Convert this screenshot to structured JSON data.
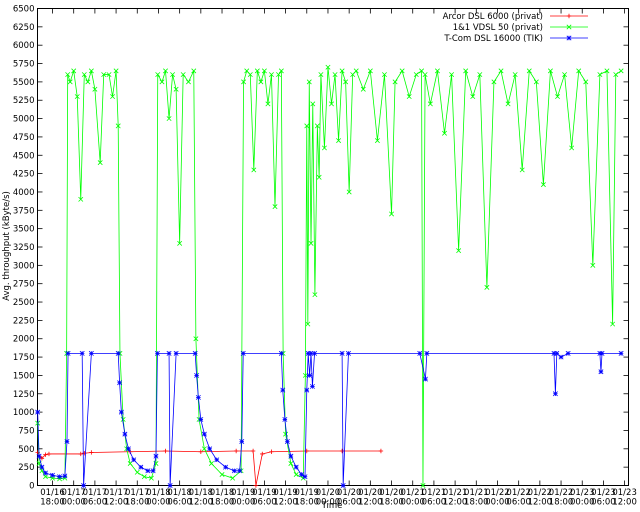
{
  "chart_data": {
    "type": "line",
    "ylabel": "Avg. throughput (kByte/s)",
    "xlabel": "Time",
    "legend": "top-right",
    "xlim": [
      13.75,
      181.1
    ],
    "ylim": [
      0,
      6500
    ],
    "yticks": [
      0,
      250,
      500,
      750,
      1000,
      1250,
      1500,
      1750,
      2000,
      2250,
      2500,
      2750,
      3000,
      3250,
      3500,
      3750,
      4000,
      4250,
      4500,
      4750,
      5000,
      5250,
      5500,
      5750,
      6000,
      6250,
      6500
    ],
    "xticks": [
      {
        "value": 18,
        "label": "01/16 18:00"
      },
      {
        "value": 24,
        "label": "01/17 00:00"
      },
      {
        "value": 30,
        "label": "01/17 06:00"
      },
      {
        "value": 36,
        "label": "01/17 12:00"
      },
      {
        "value": 42,
        "label": "01/17 18:00"
      },
      {
        "value": 48,
        "label": "01/18 00:00"
      },
      {
        "value": 54,
        "label": "01/18 06:00"
      },
      {
        "value": 60,
        "label": "01/18 12:00"
      },
      {
        "value": 66,
        "label": "01/18 18:00"
      },
      {
        "value": 72,
        "label": "01/19 00:00"
      },
      {
        "value": 78,
        "label": "01/19 06:00"
      },
      {
        "value": 84,
        "label": "01/19 12:00"
      },
      {
        "value": 90,
        "label": "01/19 18:00"
      },
      {
        "value": 96,
        "label": "01/20 00:00"
      },
      {
        "value": 102,
        "label": "01/20 06:00"
      },
      {
        "value": 108,
        "label": "01/20 12:00"
      },
      {
        "value": 114,
        "label": "01/20 18:00"
      },
      {
        "value": 120,
        "label": "01/21 00:00"
      },
      {
        "value": 126,
        "label": "01/21 06:00"
      },
      {
        "value": 132,
        "label": "01/21 12:00"
      },
      {
        "value": 138,
        "label": "01/21 18:00"
      },
      {
        "value": 144,
        "label": "01/22 00:00"
      },
      {
        "value": 150,
        "label": "01/22 06:00"
      },
      {
        "value": 156,
        "label": "01/22 12:00"
      },
      {
        "value": 162,
        "label": "01/22 18:00"
      },
      {
        "value": 168,
        "label": "01/23 00:00"
      },
      {
        "value": 174,
        "label": "01/23 06:00"
      },
      {
        "value": 180,
        "label": "01/23 12:00"
      }
    ],
    "series": [
      {
        "name": "Arcor DSL 6000 (privat)",
        "color": "#ff0000",
        "marker": "plus",
        "x": [
          13.8,
          15,
          16,
          17,
          26,
          27,
          29,
          40,
          50,
          60,
          70,
          74.8,
          75.6,
          77.4,
          80,
          90,
          100,
          111
        ],
        "values": [
          450,
          370,
          420,
          430,
          430,
          440,
          450,
          460,
          470,
          460,
          470,
          470,
          0,
          430,
          460,
          470,
          470,
          470
        ]
      },
      {
        "name": "1&1 VDSL 50 (privat)",
        "color": "#00ff00",
        "marker": "cross",
        "x": [
          13.8,
          14.2,
          15,
          16,
          18,
          20,
          21.5,
          22.0,
          22.3,
          23,
          24,
          25,
          26,
          27,
          28,
          29,
          30,
          31.5,
          32.5,
          34,
          35,
          36,
          36.6,
          37.1,
          38,
          39,
          40,
          42,
          44,
          46,
          47.3,
          47.8,
          49,
          50,
          51,
          52,
          53,
          54,
          55,
          56.5,
          58,
          58.6,
          59.5,
          61,
          63,
          66,
          69,
          71.4,
          72.1,
          73,
          74,
          75,
          76,
          77,
          78,
          79,
          80,
          81,
          82,
          82.8,
          83.3,
          84,
          85.5,
          87,
          89,
          89.6,
          90,
          90.3,
          90.7,
          91.2,
          91.7,
          92.3,
          93,
          93.5,
          94,
          95,
          96,
          97,
          98,
          99,
          100,
          101,
          102,
          103,
          104,
          106,
          108,
          110,
          112,
          114,
          115,
          117,
          119,
          121,
          122.5,
          122.9,
          123.5,
          125,
          127,
          129,
          131,
          133,
          135,
          137,
          139,
          141,
          143,
          145,
          147,
          149,
          151,
          153,
          155,
          157,
          159,
          161,
          163,
          165,
          167,
          169,
          171,
          173,
          175,
          176.6,
          177.5,
          179
        ],
        "values": [
          850,
          300,
          200,
          120,
          100,
          90,
          100,
          1800,
          5600,
          5500,
          5650,
          5300,
          3900,
          5600,
          5500,
          5650,
          5400,
          4400,
          5600,
          5600,
          5300,
          5650,
          4900,
          1800,
          900,
          500,
          300,
          180,
          120,
          100,
          300,
          5600,
          5500,
          5650,
          5000,
          5600,
          5400,
          3300,
          5600,
          5500,
          5650,
          2000,
          900,
          500,
          300,
          150,
          100,
          200,
          5500,
          5650,
          5600,
          4300,
          5650,
          5500,
          5650,
          5200,
          5600,
          3800,
          5600,
          5650,
          1800,
          700,
          300,
          150,
          100,
          1500,
          4900,
          2200,
          5500,
          3300,
          5200,
          2600,
          4900,
          4200,
          5600,
          4600,
          5700,
          5200,
          5600,
          4700,
          5650,
          5500,
          4000,
          5600,
          5650,
          5400,
          5650,
          4700,
          5600,
          3700,
          5500,
          5650,
          5300,
          5600,
          5650,
          0,
          5600,
          5200,
          5650,
          4800,
          5600,
          3200,
          5650,
          5300,
          5600,
          2700,
          5500,
          5650,
          5200,
          5600,
          4300,
          5650,
          5500,
          4100,
          5650,
          5300,
          5600,
          4600,
          5650,
          5500,
          3000,
          5600,
          5650,
          2200,
          5600,
          5650
        ]
      },
      {
        "name": "T-Com DSL 16000 (TIK)",
        "color": "#0000ff",
        "marker": "star",
        "x": [
          13.8,
          14.2,
          15,
          16,
          18,
          20,
          21.5,
          22.1,
          22.4,
          26.4,
          26.8,
          29,
          36.6,
          37,
          37.5,
          38.5,
          39.5,
          41,
          43,
          45,
          46.5,
          47.3,
          47.7,
          51,
          51.3,
          53,
          58.4,
          58.8,
          59.3,
          60,
          61,
          62.5,
          64.5,
          67,
          69.5,
          71,
          71.6,
          72,
          82.8,
          83.2,
          83.8,
          84.5,
          85.5,
          87,
          88.5,
          89.5,
          90,
          90.4,
          90.8,
          91.2,
          91.6,
          92.2,
          100,
          100.3,
          101.8,
          122,
          123.6,
          124,
          160,
          160.4,
          160.8,
          162,
          164,
          173,
          173.3,
          173.6,
          179
        ],
        "values": [
          1000,
          400,
          250,
          170,
          140,
          120,
          130,
          600,
          1800,
          1800,
          0,
          1800,
          1800,
          1400,
          1000,
          700,
          500,
          350,
          250,
          200,
          200,
          400,
          1800,
          1800,
          0,
          1800,
          1800,
          1500,
          1200,
          900,
          700,
          500,
          350,
          250,
          200,
          200,
          600,
          1800,
          1800,
          1300,
          900,
          600,
          400,
          250,
          150,
          120,
          1300,
          1800,
          1500,
          1800,
          1350,
          1800,
          1800,
          0,
          1800,
          1800,
          1450,
          1800,
          1800,
          1250,
          1800,
          1750,
          1800,
          1800,
          1550,
          1800,
          1800
        ]
      }
    ]
  }
}
